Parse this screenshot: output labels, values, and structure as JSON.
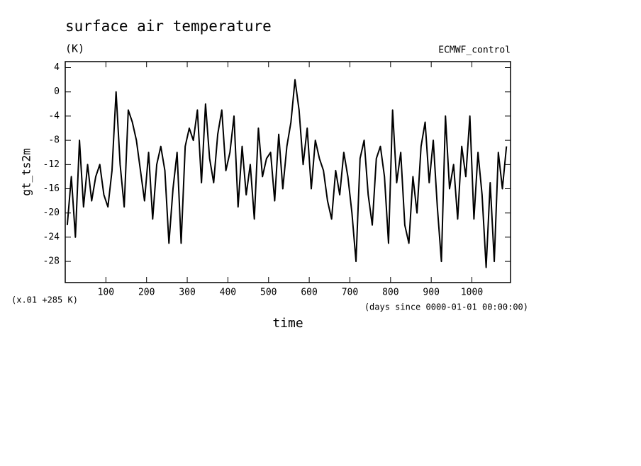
{
  "chart_data": {
    "type": "line",
    "title": "surface air temperature",
    "subtitle": "(K)",
    "annotation": "ECMWF_control",
    "y_label": "gt_ts2m",
    "y_unit_note": "(x.01 +285 K)",
    "x_unit_note": "(days since 0000-01-01 00:00:00)",
    "x_label": "time",
    "xlim": [
      0,
      1095
    ],
    "ylim": [
      -31.5,
      5
    ],
    "xticks": [
      100,
      200,
      300,
      400,
      500,
      600,
      700,
      800,
      900,
      1000
    ],
    "yticks": [
      4,
      0,
      -4,
      -8,
      -12,
      -16,
      -20,
      -24,
      -28
    ],
    "series": [
      {
        "color": "#000000",
        "x": [
          5,
          15,
          25,
          35,
          45,
          55,
          65,
          75,
          85,
          95,
          105,
          115,
          125,
          135,
          145,
          155,
          165,
          175,
          185,
          195,
          205,
          215,
          225,
          235,
          245,
          255,
          265,
          275,
          285,
          295,
          305,
          315,
          325,
          335,
          345,
          355,
          365,
          375,
          385,
          395,
          405,
          415,
          425,
          435,
          445,
          455,
          465,
          475,
          485,
          495,
          505,
          515,
          525,
          535,
          545,
          555,
          565,
          575,
          585,
          595,
          605,
          615,
          625,
          635,
          645,
          655,
          665,
          675,
          685,
          695,
          705,
          715,
          725,
          735,
          745,
          755,
          765,
          775,
          785,
          795,
          805,
          815,
          825,
          835,
          845,
          855,
          865,
          875,
          885,
          895,
          905,
          915,
          925,
          935,
          945,
          955,
          965,
          975,
          985,
          995,
          1005,
          1015,
          1025,
          1035,
          1045,
          1055,
          1065,
          1075,
          1085
        ],
        "values": [
          -22,
          -14,
          -24,
          -8,
          -19,
          -12,
          -18,
          -14,
          -12,
          -17,
          -19,
          -13,
          0,
          -12,
          -19,
          -3,
          -5,
          -8,
          -13,
          -18,
          -10,
          -21,
          -12,
          -9,
          -13,
          -25,
          -16,
          -10,
          -25,
          -9,
          -6,
          -8,
          -3,
          -15,
          -2,
          -11,
          -15,
          -7,
          -3,
          -13,
          -10,
          -4,
          -19,
          -9,
          -17,
          -12,
          -21,
          -6,
          -14,
          -11,
          -10,
          -18,
          -7,
          -16,
          -9,
          -5,
          2,
          -3,
          -12,
          -6,
          -16,
          -8,
          -11,
          -13,
          -18,
          -21,
          -13,
          -17,
          -10,
          -14,
          -20,
          -28,
          -11,
          -8,
          -17,
          -22,
          -11,
          -9,
          -14,
          -25,
          -3,
          -15,
          -10,
          -22,
          -25,
          -14,
          -20,
          -9,
          -5,
          -15,
          -8,
          -19,
          -28,
          -4,
          -16,
          -12,
          -21,
          -9,
          -14,
          -4,
          -21,
          -10,
          -17,
          -29,
          -15,
          -28,
          -10,
          -16,
          -9
        ]
      }
    ]
  }
}
